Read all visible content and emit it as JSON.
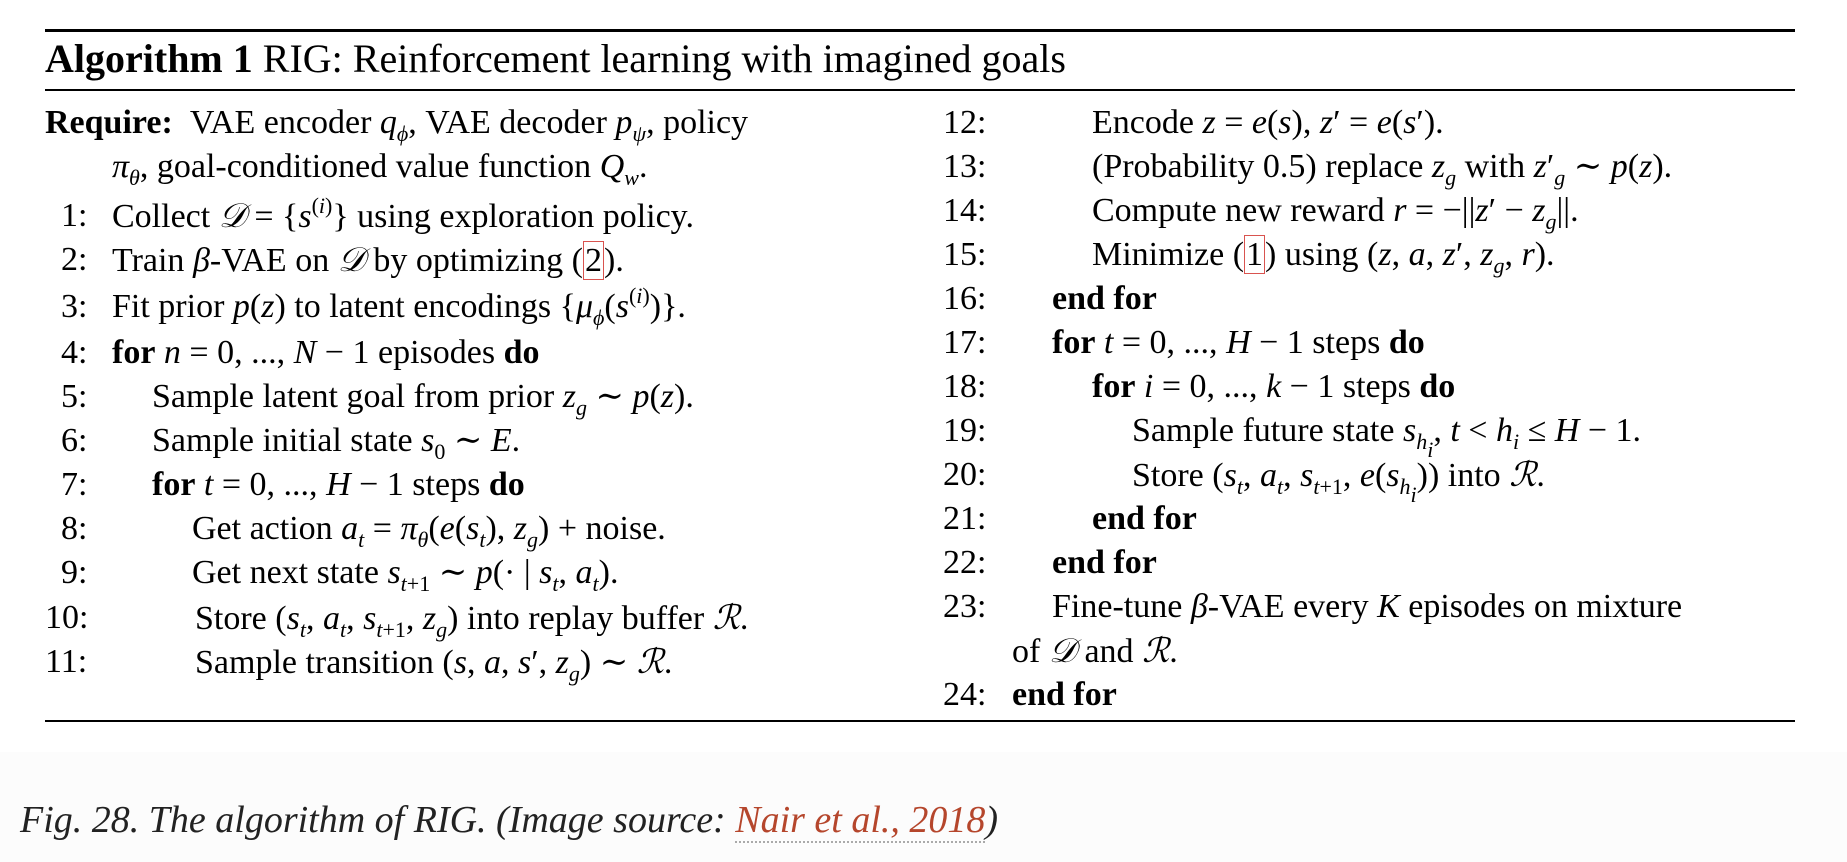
{
  "algorithm": {
    "label": "Algorithm 1",
    "title": "RIG: Reinforcement learning with imagined goals",
    "require_label": "Require:",
    "require_line1": "VAE encoder q_φ, VAE decoder p_ψ, policy",
    "require_line2": "π_θ, goal-conditioned value function Q_w."
  },
  "steps": [
    {
      "n": "1:",
      "text": "Collect 𝒟 = {s^(i)} using exploration policy."
    },
    {
      "n": "2:",
      "text": "Train β-VAE on 𝒟 by optimizing (2)."
    },
    {
      "n": "3:",
      "text": "Fit prior p(z) to latent encodings {μ_φ(s^(i))}."
    },
    {
      "n": "4:",
      "text": "for n = 0, ..., N − 1 episodes do"
    },
    {
      "n": "5:",
      "text": "Sample latent goal from prior z_g ∼ p(z)."
    },
    {
      "n": "6:",
      "text": "Sample initial state s_0 ∼ E."
    },
    {
      "n": "7:",
      "text": "for t = 0, ..., H − 1 steps do"
    },
    {
      "n": "8:",
      "text": "Get action a_t = π_θ(e(s_t), z_g) + noise."
    },
    {
      "n": "9:",
      "text": "Get next state s_t+1 ∼ p(· | s_t, a_t)."
    },
    {
      "n": "10:",
      "text": "Store (s_t, a_t, s_t+1, z_g) into replay buffer ℛ."
    },
    {
      "n": "11:",
      "text": "Sample transition (s, a, s′, z_g) ∼ ℛ."
    },
    {
      "n": "12:",
      "text": "Encode z = e(s), z′ = e(s′)."
    },
    {
      "n": "13:",
      "text": "(Probability 0.5) replace z_g with z′_g ∼ p(z)."
    },
    {
      "n": "14:",
      "text": "Compute new reward r = −||z′ − z_g||."
    },
    {
      "n": "15:",
      "text": "Minimize (1) using (z, a, z′, z_g, r)."
    },
    {
      "n": "16:",
      "text": "end for"
    },
    {
      "n": "17:",
      "text": "for t = 0, ..., H − 1 steps do"
    },
    {
      "n": "18:",
      "text": "for i = 0, ..., k − 1 steps do"
    },
    {
      "n": "19:",
      "text": "Sample future state s_h_i, t < h_i ≤ H − 1."
    },
    {
      "n": "20:",
      "text": "Store (s_t, a_t, s_t+1, e(s_h_i)) into ℛ."
    },
    {
      "n": "21:",
      "text": "end for"
    },
    {
      "n": "22:",
      "text": "end for"
    },
    {
      "n": "23:",
      "text": "Fine-tune β-VAE every K episodes on mixture of 𝒟 and ℛ."
    },
    {
      "n": "24:",
      "text": "end for"
    }
  ],
  "caption": {
    "prefix": "Fig. 28. The algorithm of RIG. (Image source: ",
    "link_text": "Nair et al., 2018",
    "suffix": ")"
  },
  "colors": {
    "link": "#b5462c",
    "ref_box": "#d9534f"
  }
}
